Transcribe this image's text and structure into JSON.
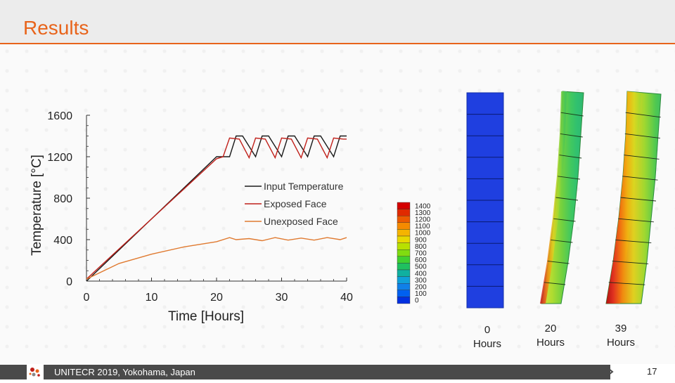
{
  "slide": {
    "title": "Results",
    "footer_text": "UNITECR 2019, Yokohama, Japan",
    "page_number": "17"
  },
  "colors": {
    "accent": "#e8641b",
    "input_temperature": "#1a1a1a",
    "exposed_face": "#c0201a",
    "unexposed_face": "#e07a30"
  },
  "chart_data": {
    "type": "line",
    "xlabel": "Time [Hours]",
    "ylabel": "Temperature [°C]",
    "xlim": [
      0,
      40
    ],
    "ylim": [
      0,
      1600
    ],
    "xticks": [
      "0",
      "10",
      "20",
      "30",
      "40"
    ],
    "yticks": [
      "0",
      "400",
      "800",
      "1200",
      "1600"
    ],
    "legend_position": "middle-right",
    "series": [
      {
        "name": "Input Temperature",
        "x": [
          0,
          20,
          22,
          23,
          24,
          26,
          27,
          28,
          30,
          31,
          32,
          34,
          35,
          36,
          38,
          39,
          40
        ],
        "values": [
          0,
          1200,
          1200,
          1400,
          1400,
          1200,
          1400,
          1400,
          1200,
          1400,
          1400,
          1200,
          1400,
          1400,
          1200,
          1400,
          1400
        ]
      },
      {
        "name": "Exposed Face",
        "x": [
          0,
          20,
          21,
          22,
          23.5,
          25,
          26,
          27.5,
          29,
          30,
          31.5,
          33,
          34,
          35.5,
          37,
          38,
          39.5,
          40
        ],
        "values": [
          20,
          1180,
          1200,
          1380,
          1370,
          1190,
          1380,
          1370,
          1190,
          1380,
          1370,
          1190,
          1380,
          1370,
          1190,
          1380,
          1370,
          1370
        ]
      },
      {
        "name": "Unexposed Face",
        "x": [
          0,
          5,
          10,
          15,
          20,
          22,
          23,
          25,
          27,
          29,
          31,
          33,
          35,
          37,
          39,
          40
        ],
        "values": [
          20,
          170,
          260,
          330,
          380,
          420,
          400,
          410,
          390,
          420,
          395,
          415,
          395,
          420,
          400,
          420
        ]
      }
    ]
  },
  "colorbar": {
    "labels": [
      "1400",
      "1300",
      "1200",
      "1100",
      "1000",
      "900",
      "800",
      "700",
      "600",
      "500",
      "400",
      "300",
      "200",
      "100",
      "0"
    ],
    "colors": [
      "#d40000",
      "#e02a00",
      "#ec5a00",
      "#f58a00",
      "#f5b400",
      "#e8d800",
      "#b8e000",
      "#80dc10",
      "#40d030",
      "#20c060",
      "#10b0a0",
      "#10a0d8",
      "#1080e8",
      "#0060f0",
      "#0030e0"
    ]
  },
  "captions": [
    {
      "line1": "0",
      "line2": "Hours"
    },
    {
      "line1": "20",
      "line2": "Hours"
    },
    {
      "line1": "39",
      "line2": "Hours"
    }
  ]
}
